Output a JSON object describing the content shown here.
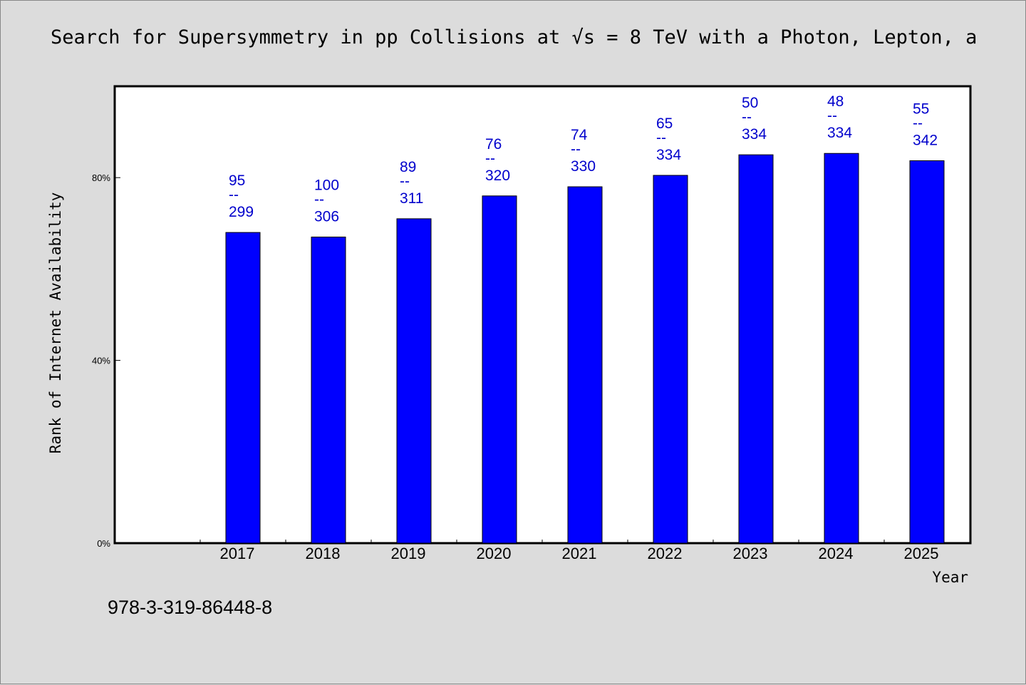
{
  "title": "Search for Supersymmetry in pp Collisions at √s = 8 TeV with a Photon, Lepton, a",
  "footer_text": "978-3-319-86448-8",
  "colors": {
    "bar": "#0000ff",
    "label": "#0000cc",
    "background": "#dcdcdc",
    "plot_bg": "#ffffff"
  },
  "chart_data": {
    "type": "bar",
    "xlabel": "Year",
    "ylabel": "Rank of Internet Availability",
    "categories": [
      "2017",
      "2018",
      "2019",
      "2020",
      "2021",
      "2022",
      "2023",
      "2024",
      "2025"
    ],
    "values": [
      68,
      67,
      71,
      76,
      78,
      80.5,
      85,
      85.3,
      83.7
    ],
    "ylim": [
      0,
      100
    ],
    "yticks": [
      0,
      40,
      80
    ],
    "ytick_labels": [
      "0%",
      "40%",
      "80%"
    ],
    "data_labels": [
      {
        "top": "95",
        "sep": "--",
        "bottom": "299"
      },
      {
        "top": "100",
        "sep": "--",
        "bottom": "306"
      },
      {
        "top": "89",
        "sep": "--",
        "bottom": "311"
      },
      {
        "top": "76",
        "sep": "--",
        "bottom": "320"
      },
      {
        "top": "74",
        "sep": "--",
        "bottom": "330"
      },
      {
        "top": "65",
        "sep": "--",
        "bottom": "334"
      },
      {
        "top": "50",
        "sep": "--",
        "bottom": "334"
      },
      {
        "top": "48",
        "sep": "--",
        "bottom": "334"
      },
      {
        "top": "55",
        "sep": "--",
        "bottom": "342"
      }
    ],
    "grid": false,
    "legend": "none"
  }
}
